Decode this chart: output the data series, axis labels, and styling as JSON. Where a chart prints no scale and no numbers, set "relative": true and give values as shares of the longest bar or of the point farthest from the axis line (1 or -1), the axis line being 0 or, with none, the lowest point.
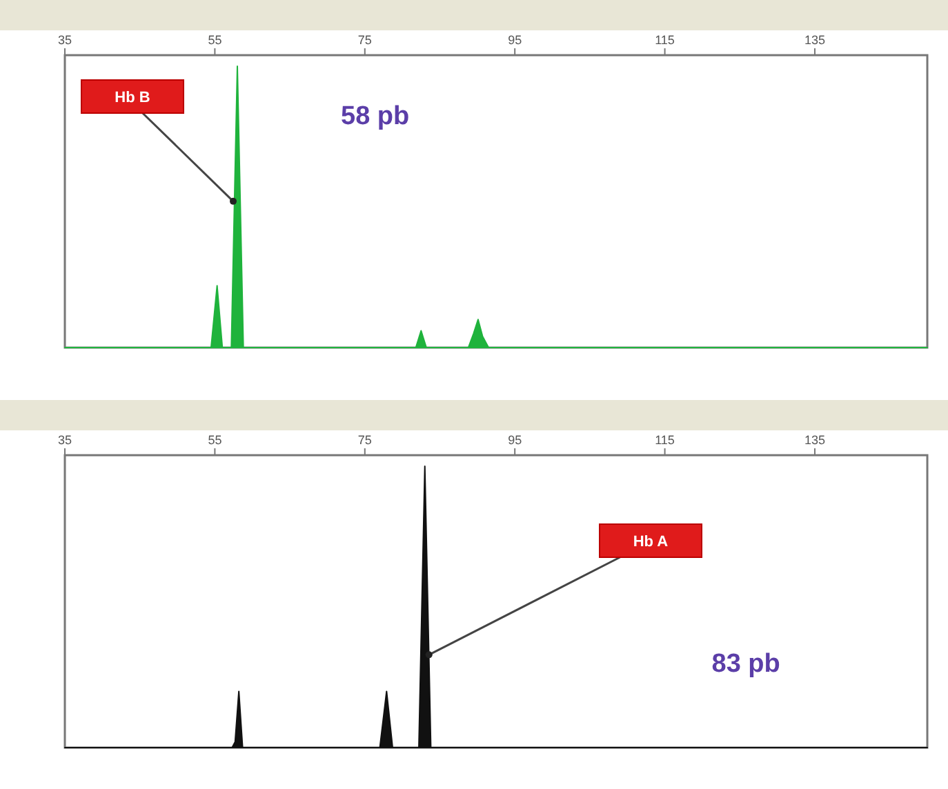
{
  "chart_data": [
    {
      "type": "area",
      "relative": true,
      "xlim": [
        35,
        150
      ],
      "xticks": [
        35,
        55,
        75,
        95,
        115,
        135
      ],
      "annotations": [
        {
          "text": "Hb B",
          "x": 58,
          "y": 0.52
        },
        "58 pb"
      ],
      "series": [
        {
          "color": "#1fb33c",
          "x": [
            35,
            54.5,
            55.3,
            56,
            57.2,
            58,
            58.8,
            60,
            81.8,
            82.5,
            83.2,
            88.8,
            89.5,
            90.1,
            90.7,
            91.5,
            150
          ],
          "values": [
            0,
            0,
            0.22,
            0,
            0,
            1,
            0,
            0,
            0,
            0.06,
            0,
            0,
            0.05,
            0.1,
            0.04,
            0,
            0
          ]
        }
      ]
    },
    {
      "type": "area",
      "relative": true,
      "xlim": [
        35,
        150
      ],
      "xticks": [
        35,
        55,
        75,
        95,
        115,
        135
      ],
      "annotations": [
        {
          "text": "Hb A",
          "x": 83,
          "y": 0.33
        },
        "83 pb"
      ],
      "series": [
        {
          "color": "#111111",
          "x": [
            35,
            57.3,
            57.7,
            58.2,
            58.7,
            77,
            77.9,
            78.7,
            82.2,
            83,
            83.8,
            150
          ],
          "values": [
            0,
            0,
            0.02,
            0.2,
            0,
            0,
            0.2,
            0,
            0,
            1,
            0,
            0
          ]
        }
      ]
    }
  ]
}
